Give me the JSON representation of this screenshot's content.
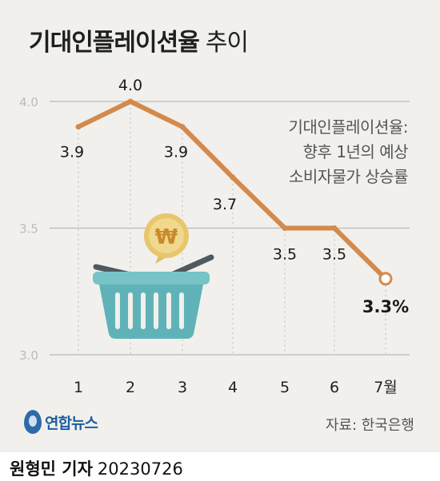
{
  "title": {
    "main": "기대인플레이션율",
    "sub": "추이"
  },
  "description": [
    "기대인플레이션율:",
    "향후 1년의 예상",
    "소비자물가 상승률"
  ],
  "source": "자료: 한국은행",
  "logo_text": "연합뉴스",
  "credit": {
    "name": "원형민 기자",
    "date": "20230726"
  },
  "colors": {
    "line": "#d48a4c",
    "background": "#f1f0ec",
    "basket": "#67b7bc",
    "coin": "#e6c46a"
  },
  "icons": [
    "basket-icon",
    "won-coin-icon",
    "yonhap-logo-icon"
  ],
  "chart_data": {
    "type": "line",
    "categories": [
      "1",
      "2",
      "3",
      "4",
      "5",
      "6",
      "7월"
    ],
    "values": [
      3.9,
      4.0,
      3.9,
      3.7,
      3.5,
      3.5,
      3.3
    ],
    "point_labels": [
      "3.9",
      "4.0",
      "3.9",
      "3.7",
      "3.5",
      "3.5",
      "3.3%"
    ],
    "ylim": [
      3.0,
      4.0
    ],
    "yticks": [
      "3.0",
      "3.5",
      "4.0"
    ],
    "grid": true,
    "xlabel": "",
    "ylabel": ""
  }
}
